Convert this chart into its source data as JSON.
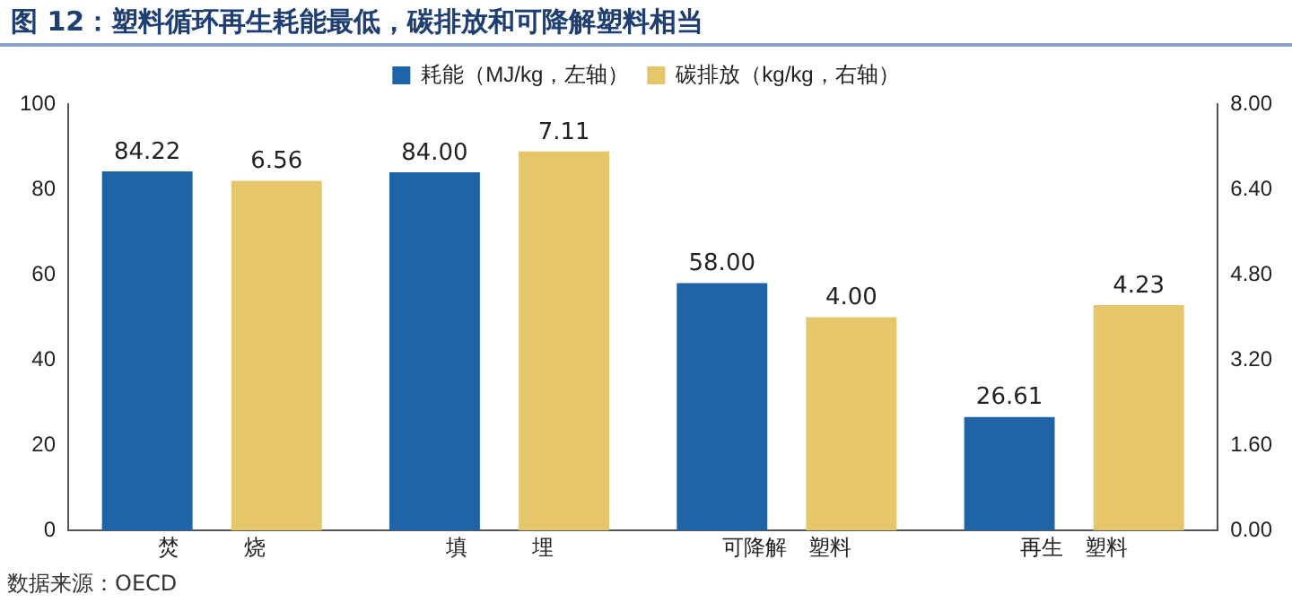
{
  "chart_data": {
    "type": "bar",
    "title": "图 12：塑料循环再生耗能最低，碳排放和可降解塑料相当",
    "categories": [
      "焚　　　烧",
      "填　　　埋",
      "可降解　塑料",
      "再生　塑料"
    ],
    "series": [
      {
        "name": "耗能（MJ/kg，左轴）",
        "color": "#1f64a6",
        "values": [
          84.22,
          84.0,
          58.0,
          26.61
        ],
        "value_labels": [
          "84.22",
          "84.00",
          "58.00",
          "26.61"
        ]
      },
      {
        "name": "碳排放（kg/kg，右轴）",
        "color": "#e5c66b",
        "axis": "y2",
        "values": [
          6.56,
          7.11,
          4.0,
          4.23
        ],
        "value_labels": [
          "6.56",
          "7.11",
          "4.00",
          "4.23"
        ]
      }
    ],
    "ylim": [
      0,
      100
    ],
    "yticks": [
      0,
      20,
      40,
      60,
      80,
      100
    ],
    "y2lim": [
      0,
      8
    ],
    "y2ticks": [
      {
        "value": 0,
        "label": "0.00"
      },
      {
        "value": 1.6,
        "label": "1.60"
      },
      {
        "value": 3.2,
        "label": "3.20"
      },
      {
        "value": 4.8,
        "label": "4.80"
      },
      {
        "value": 6.4,
        "label": "6.40"
      },
      {
        "value": 8,
        "label": "8.00"
      }
    ],
    "grid": false,
    "legend": "top",
    "annotations": [
      "数据来源：OECD"
    ]
  }
}
